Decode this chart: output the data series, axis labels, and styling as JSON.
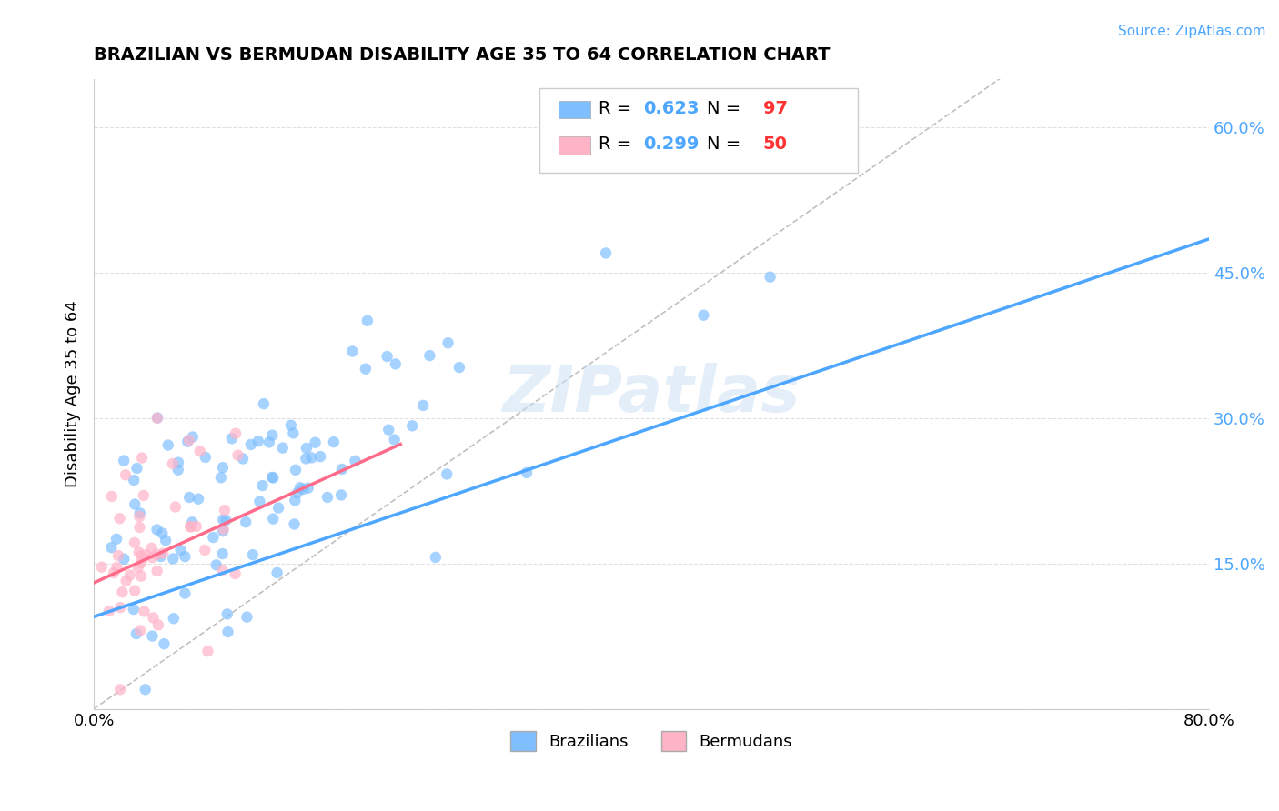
{
  "title": "BRAZILIAN VS BERMUDAN DISABILITY AGE 35 TO 64 CORRELATION CHART",
  "source": "Source: ZipAtlas.com",
  "xlabel": "",
  "ylabel": "Disability Age 35 to 64",
  "xlim": [
    0.0,
    0.8
  ],
  "ylim": [
    0.0,
    0.65
  ],
  "xticks": [
    0.0,
    0.1,
    0.2,
    0.3,
    0.4,
    0.5,
    0.6,
    0.7,
    0.8
  ],
  "xticklabels": [
    "0.0%",
    "",
    "",
    "",
    "",
    "",
    "",
    "",
    "80.0%"
  ],
  "yticks": [
    0.0,
    0.15,
    0.3,
    0.45,
    0.6
  ],
  "yticklabels": [
    "",
    "15.0%",
    "30.0%",
    "45.0%",
    "60.0%"
  ],
  "brazilian_color": "#7fbfff",
  "bermudan_color": "#ffb3c6",
  "brazilian_line_color": "#4da6ff",
  "bermudan_line_color": "#ff6b8a",
  "diagonal_color": "#c0c0c0",
  "R_brazilian": 0.623,
  "N_brazilian": 97,
  "R_bermudan": 0.299,
  "N_bermudan": 50,
  "watermark": "ZIPatlas",
  "background_color": "#ffffff",
  "grid_color": "#e0e0e0",
  "slope_br": 0.487,
  "intercept_br": 0.095,
  "slope_be": 0.65,
  "intercept_be": 0.13,
  "x_line_be_end": 0.22
}
